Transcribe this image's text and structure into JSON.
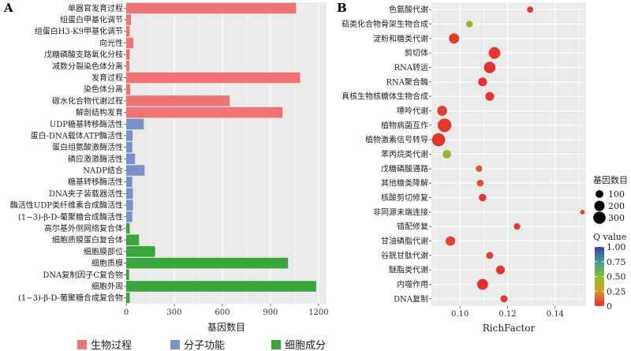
{
  "colors": {
    "bio_process": "#f07373",
    "mol_function": "#7a92c9",
    "cell_component": "#3aa53a",
    "panel_bg": "#ebebeb",
    "grid": "#ffffff"
  },
  "chart_data": [
    {
      "type": "bar",
      "orientation": "horizontal",
      "panel_label": "A",
      "xlabel": "基因数目",
      "ylabel": "",
      "xlim": [
        0,
        1250
      ],
      "xticks": [
        0,
        300,
        600,
        900,
        1200
      ],
      "grid": true,
      "legend_position": "bottom",
      "legend": [
        {
          "name": "生物过程",
          "color": "#f07373"
        },
        {
          "name": "分子功能",
          "color": "#7a92c9"
        },
        {
          "name": "细胞成分",
          "color": "#3aa53a"
        }
      ],
      "categories": [
        "单器官发育过程",
        "组蛋白甲基化调节",
        "组蛋白H3-K9甲基化调节",
        "向光性",
        "戊糖磷酸支路氧化分枝",
        "减数分裂染色体分离",
        "发育过程",
        "染色体分离",
        "碳水化合物代谢过程",
        "解剖结构发育",
        "UDP糖基转移酶活性",
        "蛋白-DNA载体ATP酶活性",
        "蛋白组氨酸激酶活性",
        "磷应激激酶活性",
        "NADP结合",
        "糖基转移酶活性",
        "DNA夹子装载器活性",
        "酶活性UDP类纤维素合成酶活性",
        "(1−3)-β-D-葡聚糖合成酶活性",
        "高尔基外侧网络复合体",
        "细胞质膜蛋白复合体",
        "细胞膜部位",
        "细胞质膜",
        "DNA复制因子C复合物",
        "细胞外周",
        "(1−3)-β-D-葡聚糖合成复合物"
      ],
      "series": [
        {
          "name": "生物过程",
          "values": [
            1060,
            30,
            22,
            45,
            22,
            20,
            1085,
            25,
            645,
            975,
            null,
            null,
            null,
            null,
            null,
            null,
            null,
            null,
            null,
            null,
            null,
            null,
            null,
            null,
            null,
            null
          ]
        },
        {
          "name": "分子功能",
          "values": [
            null,
            null,
            null,
            null,
            null,
            null,
            null,
            null,
            null,
            null,
            110,
            40,
            38,
            55,
            115,
            38,
            42,
            42,
            38,
            null,
            null,
            null,
            null,
            null,
            null,
            null
          ]
        },
        {
          "name": "细胞成分",
          "values": [
            null,
            null,
            null,
            null,
            null,
            null,
            null,
            null,
            null,
            null,
            null,
            null,
            null,
            null,
            null,
            null,
            null,
            null,
            null,
            22,
            80,
            180,
            1010,
            18,
            1185,
            22
          ]
        }
      ]
    },
    {
      "type": "scatter",
      "panel_label": "B",
      "xlabel": "RichFactor",
      "ylabel": "",
      "xlim": [
        0.088,
        0.153
      ],
      "xticks": [
        0.1,
        0.12,
        0.14
      ],
      "xtick_labels": [
        "0.10",
        "0.12",
        "0.14"
      ],
      "grid": true,
      "size_legend": {
        "title": "基因数目",
        "values": [
          100,
          200,
          300
        ]
      },
      "color_legend": {
        "title": "Q value",
        "range": [
          0,
          1
        ],
        "ticks": [
          "1.00",
          "0.75",
          "0.50",
          "0.25",
          "0"
        ]
      },
      "categories": [
        "色氨酸代谢",
        "萜类化合物骨架生物合成",
        "淀粉和糖类代谢",
        "剪切体",
        "RNA转运",
        "RNA聚合酶",
        "真核生物核糖体生物合成",
        "嘌呤代谢",
        "植物病菌互作",
        "植物激素信号转导",
        "苯丙烷类代谢",
        "戊糖磷酸通路",
        "其他糖类降解",
        "核酸剪切修复",
        "非同源末端连接",
        "错配修复",
        "甘油磷脂代谢",
        "谷胱甘肽代谢",
        "醚脂类代谢",
        "内噬作用",
        "DNA复制"
      ],
      "points": [
        {
          "y": "色氨酸代谢",
          "x": 0.1295,
          "genes": 35,
          "q": 0.02
        },
        {
          "y": "萜类化合物骨架生物合成",
          "x": 0.104,
          "genes": 45,
          "q": 0.45
        },
        {
          "y": "淀粉和糖类代谢",
          "x": 0.0975,
          "genes": 130,
          "q": 0.03
        },
        {
          "y": "剪切体",
          "x": 0.1145,
          "genes": 180,
          "q": 0.02
        },
        {
          "y": "RNA转运",
          "x": 0.1125,
          "genes": 175,
          "q": 0.01
        },
        {
          "y": "RNA聚合酶",
          "x": 0.1095,
          "genes": 90,
          "q": 0.02
        },
        {
          "y": "真核生物核糖体生物合成",
          "x": 0.1125,
          "genes": 90,
          "q": 0.02
        },
        {
          "y": "嘌呤代谢",
          "x": 0.0925,
          "genes": 125,
          "q": 0.04
        },
        {
          "y": "植物病菌互作",
          "x": 0.0935,
          "genes": 260,
          "q": 0.02
        },
        {
          "y": "植物激素信号转导",
          "x": 0.091,
          "genes": 240,
          "q": 0.01
        },
        {
          "y": "苯丙烷类代谢",
          "x": 0.0945,
          "genes": 80,
          "q": 0.45
        },
        {
          "y": "戊糖磷酸通路",
          "x": 0.108,
          "genes": 40,
          "q": 0.1
        },
        {
          "y": "其他糖类降解",
          "x": 0.1085,
          "genes": 45,
          "q": 0.08
        },
        {
          "y": "核酸剪切修复",
          "x": 0.1095,
          "genes": 60,
          "q": 0.02
        },
        {
          "y": "非同源末端连接",
          "x": 0.1515,
          "genes": 15,
          "q": 0.06
        },
        {
          "y": "错配修复",
          "x": 0.124,
          "genes": 40,
          "q": 0.02
        },
        {
          "y": "甘油磷脂代谢",
          "x": 0.096,
          "genes": 110,
          "q": 0.05
        },
        {
          "y": "谷胱甘肽代谢",
          "x": 0.1125,
          "genes": 50,
          "q": 0.04
        },
        {
          "y": "醚脂类代谢",
          "x": 0.117,
          "genes": 90,
          "q": 0.02
        },
        {
          "y": "内噬作用",
          "x": 0.1095,
          "genes": 155,
          "q": 0.01
        },
        {
          "y": "DNA复制",
          "x": 0.1185,
          "genes": 50,
          "q": 0.02
        }
      ]
    }
  ]
}
